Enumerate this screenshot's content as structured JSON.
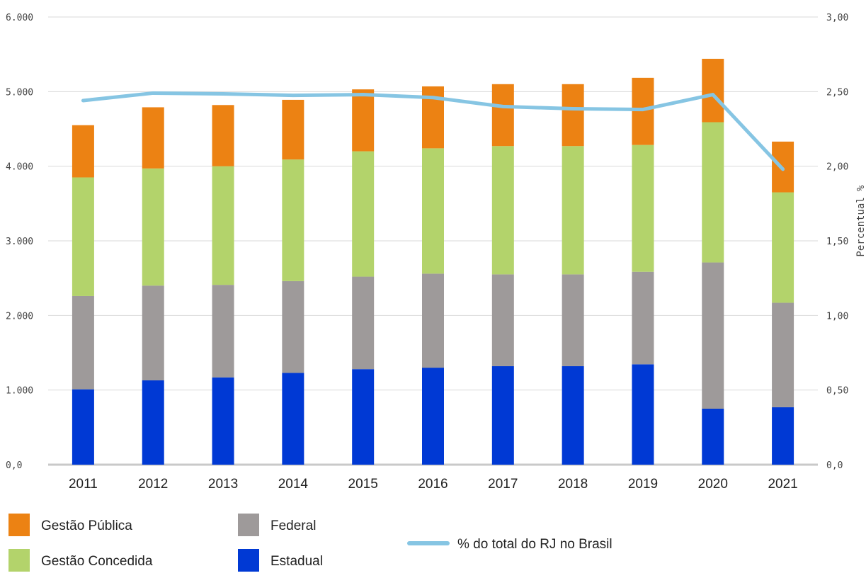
{
  "chart_data": {
    "type": "bar",
    "stacked": true,
    "categories": [
      "2011",
      "2012",
      "2013",
      "2014",
      "2015",
      "2016",
      "2017",
      "2018",
      "2019",
      "2020",
      "2021"
    ],
    "series": [
      {
        "name": "Estadual",
        "color": "#0039d4",
        "values": [
          1010,
          1130,
          1170,
          1230,
          1280,
          1300,
          1320,
          1320,
          1345,
          750,
          770
        ]
      },
      {
        "name": "Federal",
        "color": "#9e9a9a",
        "values": [
          1250,
          1270,
          1240,
          1230,
          1240,
          1260,
          1230,
          1230,
          1240,
          1960,
          1400
        ]
      },
      {
        "name": "Gestão Concedida",
        "color": "#b3d36b",
        "values": [
          1590,
          1570,
          1590,
          1630,
          1680,
          1680,
          1720,
          1720,
          1700,
          1880,
          1480
        ]
      },
      {
        "name": "Gestão Pública",
        "color": "#ec8213",
        "values": [
          700,
          820,
          820,
          800,
          830,
          830,
          830,
          830,
          900,
          850,
          680
        ]
      }
    ],
    "line_series": {
      "name": "% do total do RJ no Brasil",
      "color": "#86c5e3",
      "axis": "right",
      "values": [
        2.44,
        2.49,
        2.485,
        2.475,
        2.48,
        2.46,
        2.4,
        2.385,
        2.38,
        2.48,
        1.98
      ]
    },
    "y_left": {
      "min": 0,
      "max": 6000,
      "ticks": [
        0,
        1000,
        2000,
        3000,
        4000,
        5000,
        6000
      ],
      "tick_labels": [
        "0,0",
        "1.000",
        "2.000",
        "3.000",
        "4.000",
        "5.000",
        "6.000"
      ]
    },
    "y_right": {
      "min": 0,
      "max": 3,
      "ticks": [
        0,
        0.5,
        1,
        1.5,
        2,
        2.5,
        3
      ],
      "tick_labels": [
        "0,0",
        "0,50",
        "1,00",
        "1,50",
        "2,00",
        "2,50",
        "3,00"
      ],
      "label": "Percentual %"
    },
    "grid": true,
    "legend_position": "bottom",
    "legend_order": [
      "Gestão Pública",
      "Federal",
      "% do total do RJ no Brasil",
      "Gestão Concedida",
      "Estadual"
    ]
  }
}
